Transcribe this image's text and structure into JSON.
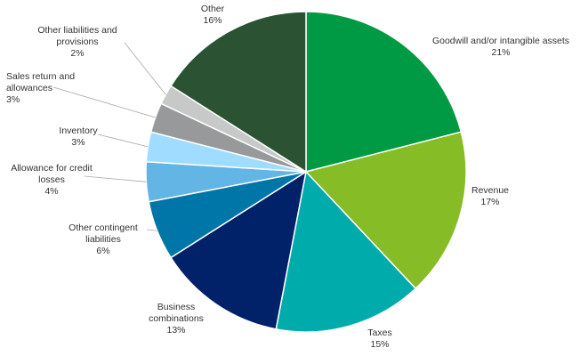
{
  "chart_data": {
    "type": "pie",
    "start": "12 o'clock",
    "direction": "clockwise",
    "slices": [
      {
        "label": "Goodwill and/or intangible assets",
        "value": 21,
        "display": "21%",
        "color": "#009a44"
      },
      {
        "label": "Revenue",
        "value": 17,
        "display": "17%",
        "color": "#86bc25"
      },
      {
        "label": "Taxes",
        "value": 15,
        "display": "15%",
        "color": "#00abab"
      },
      {
        "label": "Business combinations",
        "value": 13,
        "display": "13%",
        "color": "#012169"
      },
      {
        "label": "Other contingent liabilities",
        "value": 6,
        "display": "6%",
        "color": "#0076a8"
      },
      {
        "label": "Allowance for credit losses",
        "value": 4,
        "display": "4%",
        "color": "#62b5e5"
      },
      {
        "label": "Inventory",
        "value": 3,
        "display": "3%",
        "color": "#a0dcff"
      },
      {
        "label": "Sales return and allowances",
        "value": 3,
        "display": "3%",
        "color": "#97999b"
      },
      {
        "label": "Other liabilities and provisions",
        "value": 2,
        "display": "2%",
        "color": "#c7c9c8"
      },
      {
        "label": "Other",
        "value": 16,
        "display": "16%",
        "color": "#2c5234"
      }
    ]
  }
}
